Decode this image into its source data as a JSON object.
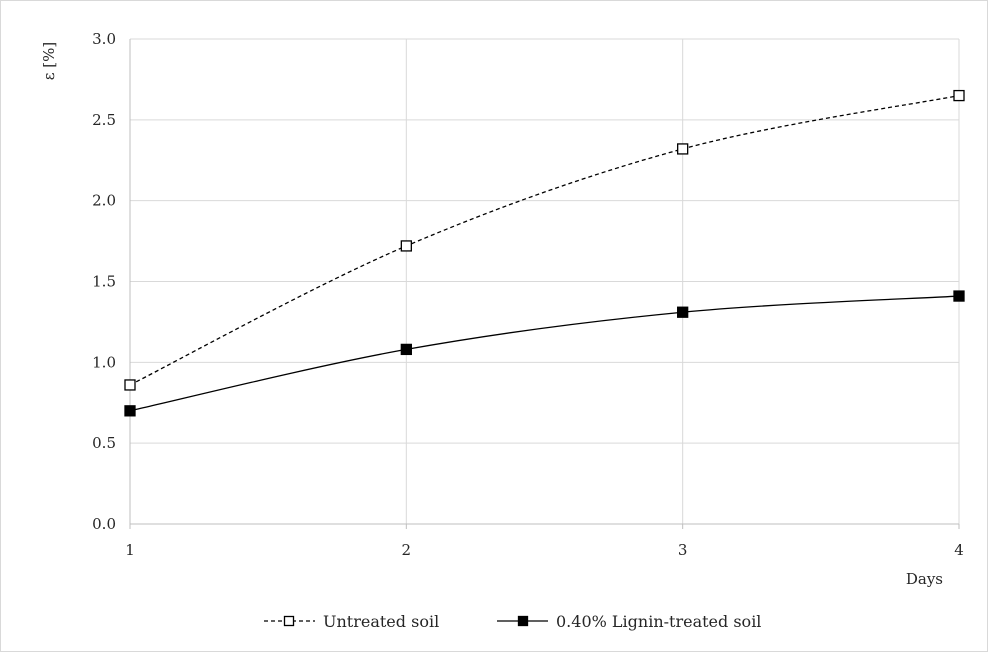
{
  "chart_data": {
    "type": "line",
    "title": "",
    "xlabel": "Days",
    "ylabel": "ε [%]",
    "x": [
      1,
      2,
      3,
      4
    ],
    "x_tick_labels": [
      "1",
      "2",
      "3",
      "4"
    ],
    "xlim": [
      1,
      4
    ],
    "ylim": [
      0,
      3
    ],
    "y_ticks": [
      0,
      0.5,
      1,
      1.5,
      2,
      2.5,
      3
    ],
    "y_tick_labels": [
      "0.0",
      "0.5",
      "1.0",
      "1.5",
      "2.0",
      "2.5",
      "3.0"
    ],
    "grid": "horizontal",
    "smooth": true,
    "legend_position": "bottom",
    "series": [
      {
        "name": "Untreated soil",
        "values": [
          0.86,
          1.72,
          2.32,
          2.65
        ],
        "line_style": "dashed",
        "marker": "open-square",
        "color": "#000000"
      },
      {
        "name": "0.40% Lignin-treated soil",
        "values": [
          0.7,
          1.08,
          1.31,
          1.41
        ],
        "line_style": "solid",
        "marker": "filled-square",
        "color": "#000000"
      }
    ]
  }
}
